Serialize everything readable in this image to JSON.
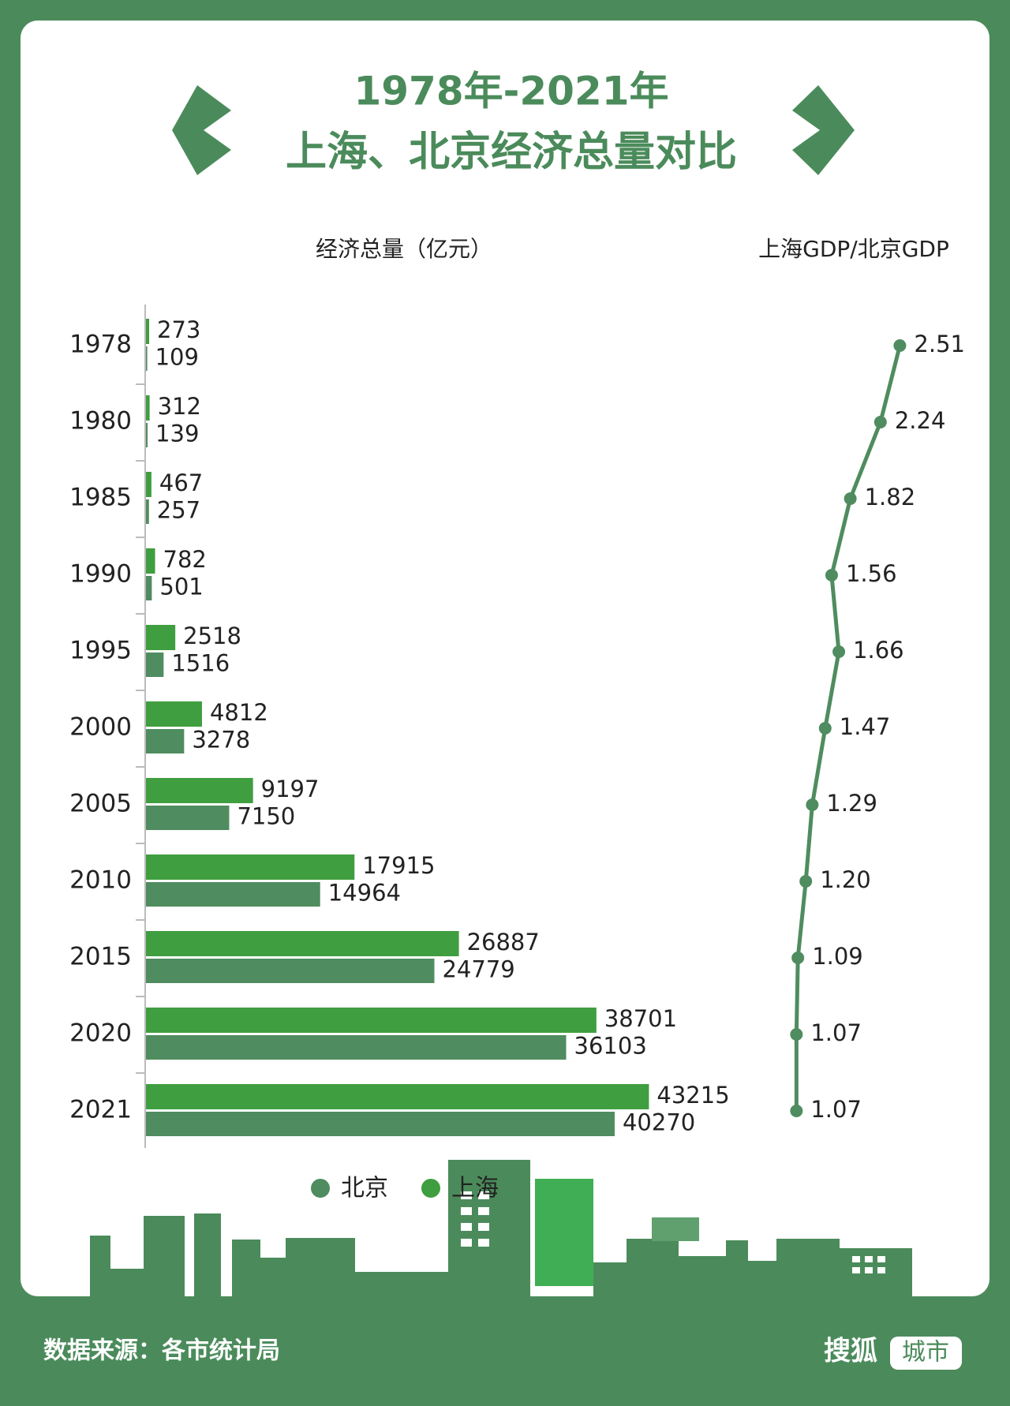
{
  "header": {
    "line1": "1978年-2021年",
    "line2": "上海、北京经济总量对比"
  },
  "chart_data": [
    {
      "type": "bar",
      "orientation": "horizontal",
      "title": "经济总量（亿元）",
      "categories": [
        "1978",
        "1980",
        "1985",
        "1990",
        "1995",
        "2000",
        "2005",
        "2010",
        "2015",
        "2020",
        "2021"
      ],
      "series": [
        {
          "name": "北京",
          "color": "#4f8c5f",
          "values": [
            109,
            139,
            257,
            501,
            1516,
            3278,
            7150,
            14964,
            24779,
            36103,
            40270
          ]
        },
        {
          "name": "上海",
          "color": "#3f9e3f",
          "values": [
            273,
            312,
            467,
            782,
            2518,
            4812,
            9197,
            17915,
            26887,
            38701,
            43215
          ]
        }
      ],
      "xlim": [
        0,
        60000
      ]
    },
    {
      "type": "line",
      "title": "上海GDP/北京GDP",
      "color": "#4f8c5f",
      "values": [
        2.51,
        2.24,
        1.82,
        1.56,
        1.66,
        1.47,
        1.29,
        1.2,
        1.09,
        1.07,
        1.07
      ],
      "value_labels": [
        "2.51",
        "2.24",
        "1.82",
        "1.56",
        "1.66",
        "1.47",
        "1.29",
        "1.20",
        "1.09",
        "1.07",
        "1.07"
      ],
      "xlim": [
        0,
        3
      ]
    }
  ],
  "footer": {
    "source": "数据来源：各市统计局",
    "brand": "搜狐",
    "brand_tag": "城市"
  }
}
